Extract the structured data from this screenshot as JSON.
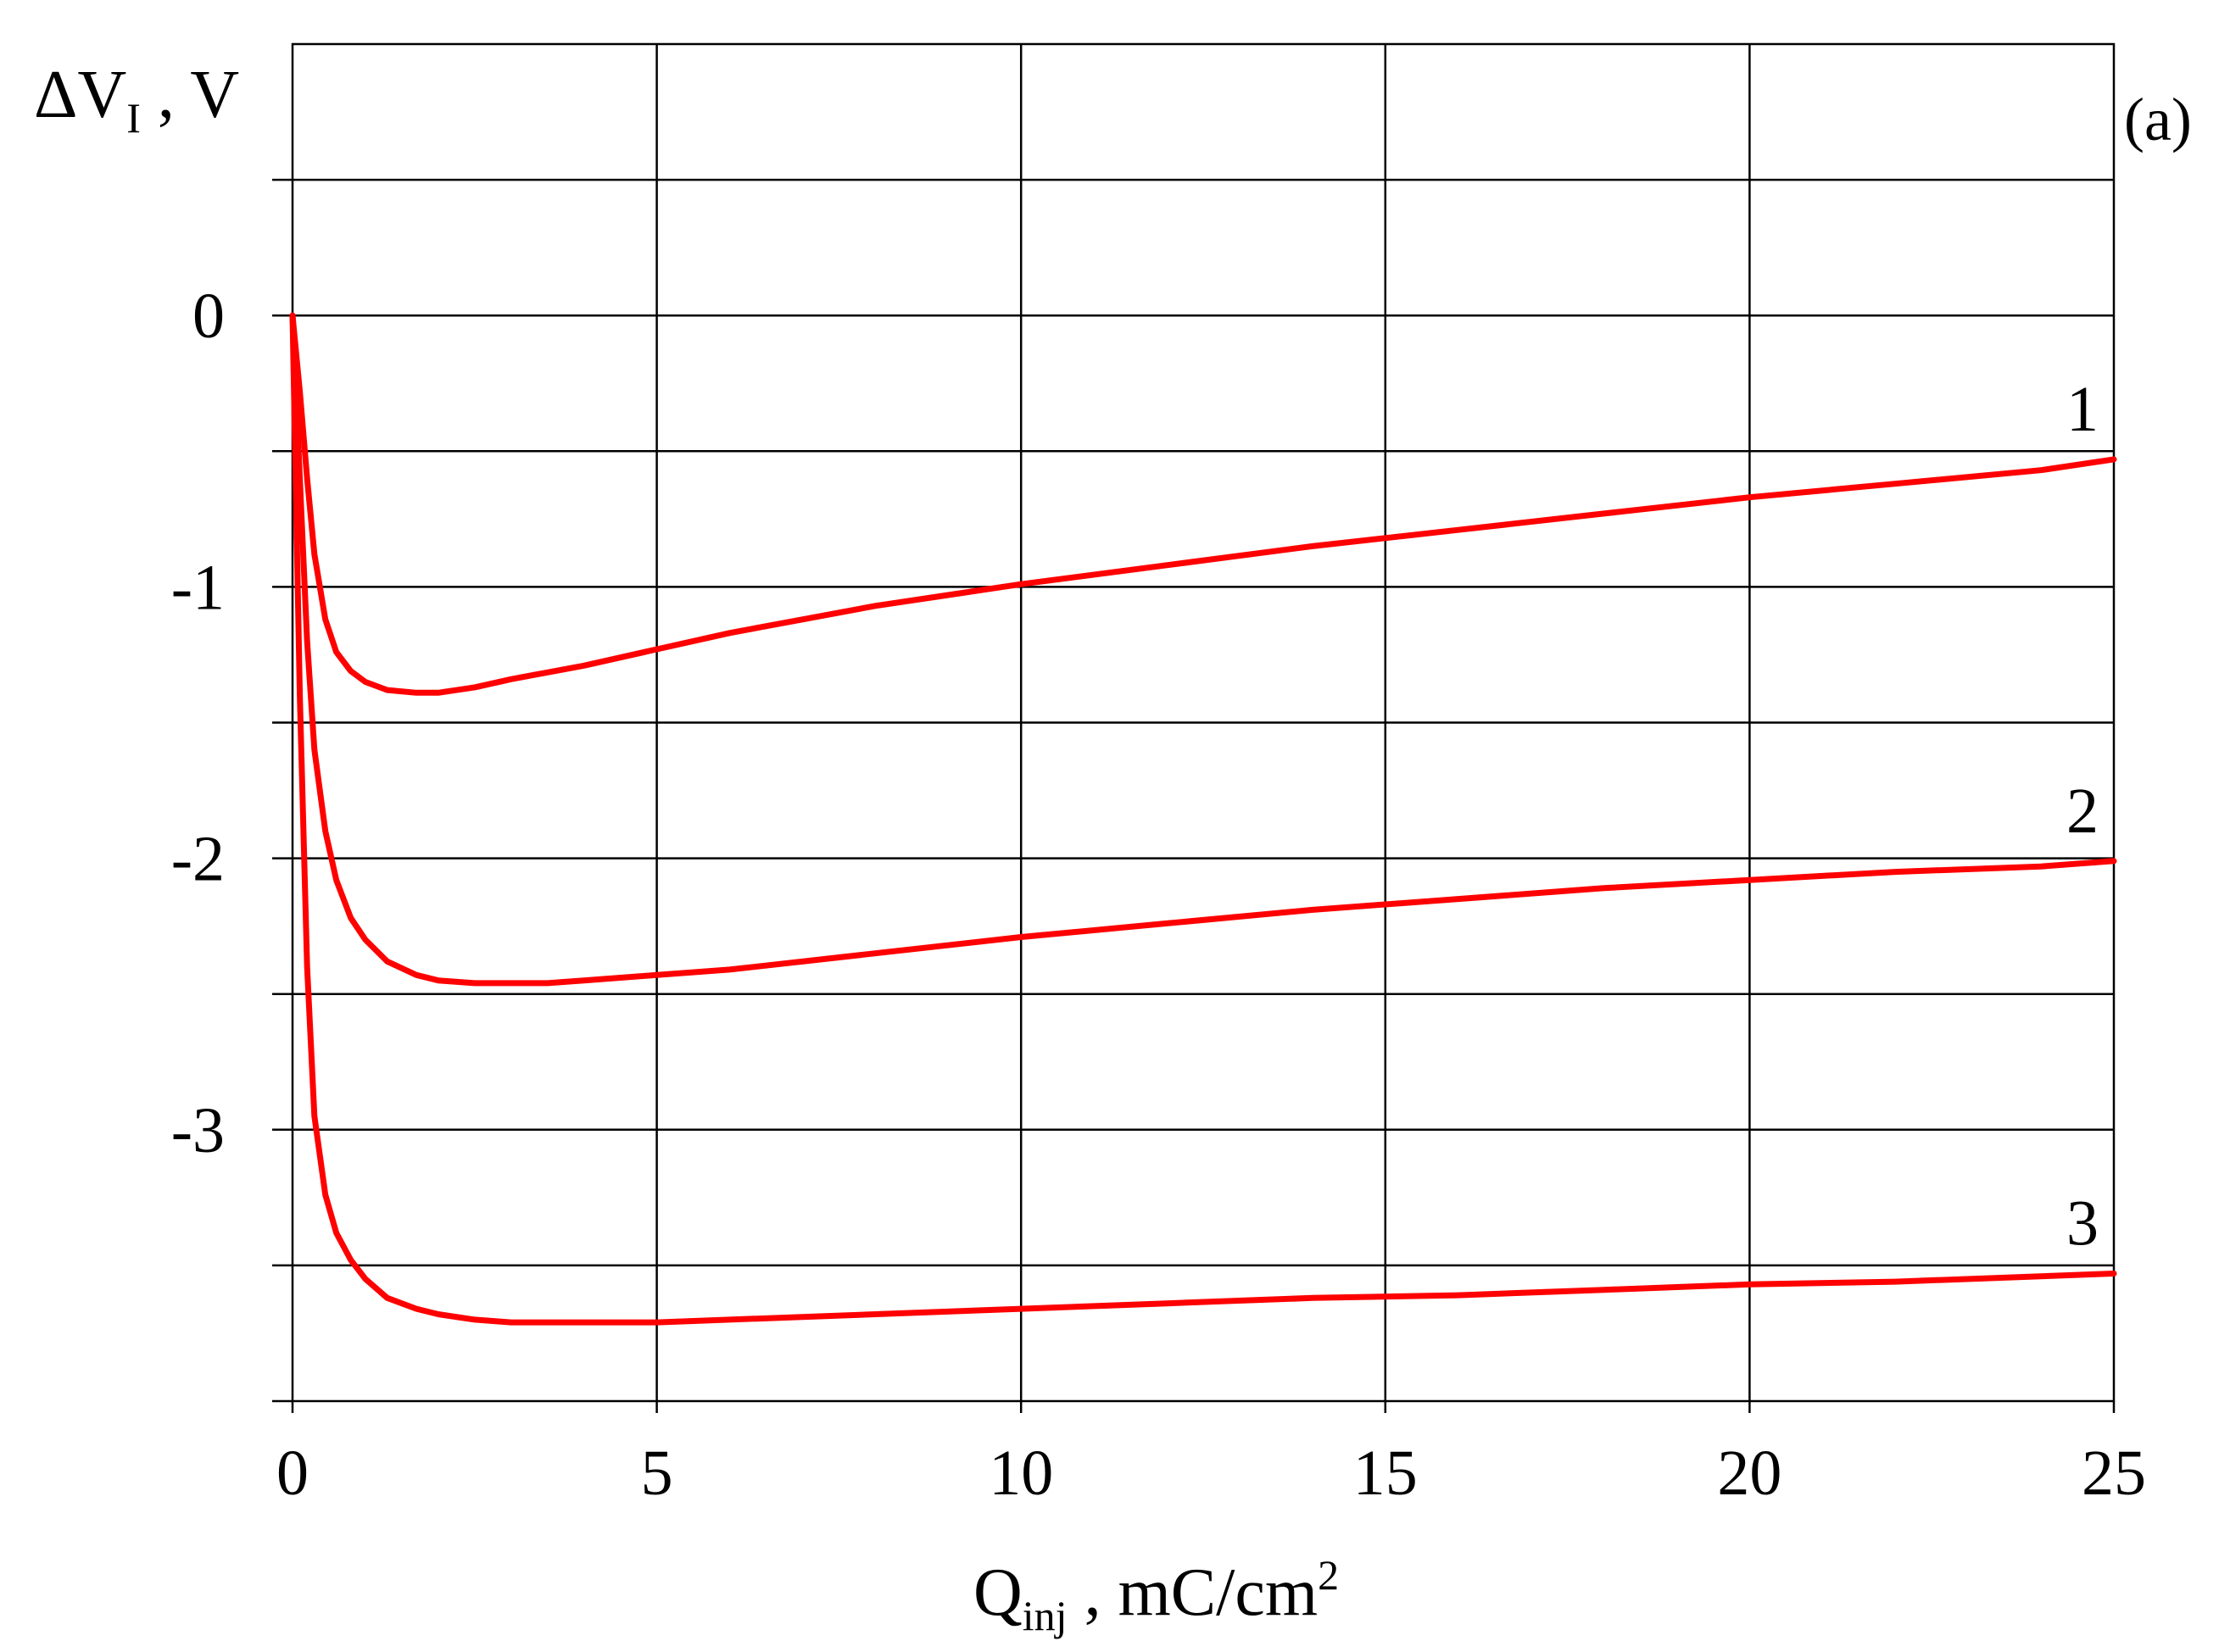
{
  "chart_data": {
    "type": "line",
    "panel_label": "(a)",
    "xlabel": {
      "main": "Q",
      "sub": "inj",
      "rest": " , mC/cm",
      "sup": "2"
    },
    "ylabel": {
      "main": "ΔV",
      "sub": "I",
      "rest": " , V"
    },
    "xlim": [
      0,
      25
    ],
    "ylim": [
      -4,
      1
    ],
    "x_ticks": [
      0,
      5,
      10,
      15,
      20,
      25
    ],
    "x_tick_labels": [
      "0",
      "5",
      "10",
      "15",
      "20",
      "25"
    ],
    "y_ticks": [
      0,
      -1,
      -2,
      -3
    ],
    "y_tick_labels": [
      "0",
      "-1",
      "-2",
      "-3"
    ],
    "y_grid": [
      0.5,
      0,
      -0.5,
      -1,
      -1.5,
      -2,
      -2.5,
      -3,
      -3.5
    ],
    "grid": true,
    "line_color": "#ff0000",
    "series": [
      {
        "label": "1",
        "x": [
          0,
          0.1,
          0.2,
          0.3,
          0.45,
          0.6,
          0.8,
          1.0,
          1.3,
          1.7,
          2.0,
          2.5,
          3,
          4,
          5,
          6,
          7,
          8,
          9,
          10,
          12,
          14,
          16,
          18,
          20,
          22,
          24,
          25
        ],
        "y": [
          0,
          -0.28,
          -0.6,
          -0.88,
          -1.12,
          -1.24,
          -1.31,
          -1.35,
          -1.38,
          -1.39,
          -1.39,
          -1.37,
          -1.34,
          -1.29,
          -1.23,
          -1.17,
          -1.12,
          -1.07,
          -1.03,
          -0.99,
          -0.92,
          -0.85,
          -0.79,
          -0.73,
          -0.67,
          -0.62,
          -0.57,
          -0.53
        ]
      },
      {
        "label": "2",
        "x": [
          0,
          0.1,
          0.2,
          0.3,
          0.45,
          0.6,
          0.8,
          1.0,
          1.3,
          1.7,
          2.0,
          2.5,
          3,
          3.5,
          4,
          5,
          6,
          8,
          10,
          12,
          14,
          16,
          18,
          20,
          22,
          24,
          25
        ],
        "y": [
          0,
          -0.6,
          -1.2,
          -1.6,
          -1.9,
          -2.08,
          -2.22,
          -2.3,
          -2.38,
          -2.43,
          -2.45,
          -2.46,
          -2.46,
          -2.46,
          -2.45,
          -2.43,
          -2.41,
          -2.35,
          -2.29,
          -2.24,
          -2.19,
          -2.15,
          -2.11,
          -2.08,
          -2.05,
          -2.03,
          -2.01
        ]
      },
      {
        "label": "3",
        "x": [
          0,
          0.1,
          0.2,
          0.3,
          0.45,
          0.6,
          0.8,
          1.0,
          1.3,
          1.7,
          2.0,
          2.5,
          3,
          4,
          5,
          6,
          8,
          10,
          12,
          14,
          16,
          18,
          20,
          22,
          24,
          25
        ],
        "y": [
          0,
          -1.4,
          -2.4,
          -2.95,
          -3.24,
          -3.38,
          -3.48,
          -3.55,
          -3.62,
          -3.66,
          -3.68,
          -3.7,
          -3.71,
          -3.71,
          -3.71,
          -3.7,
          -3.68,
          -3.66,
          -3.64,
          -3.62,
          -3.61,
          -3.59,
          -3.57,
          -3.56,
          -3.54,
          -3.53
        ]
      }
    ]
  }
}
